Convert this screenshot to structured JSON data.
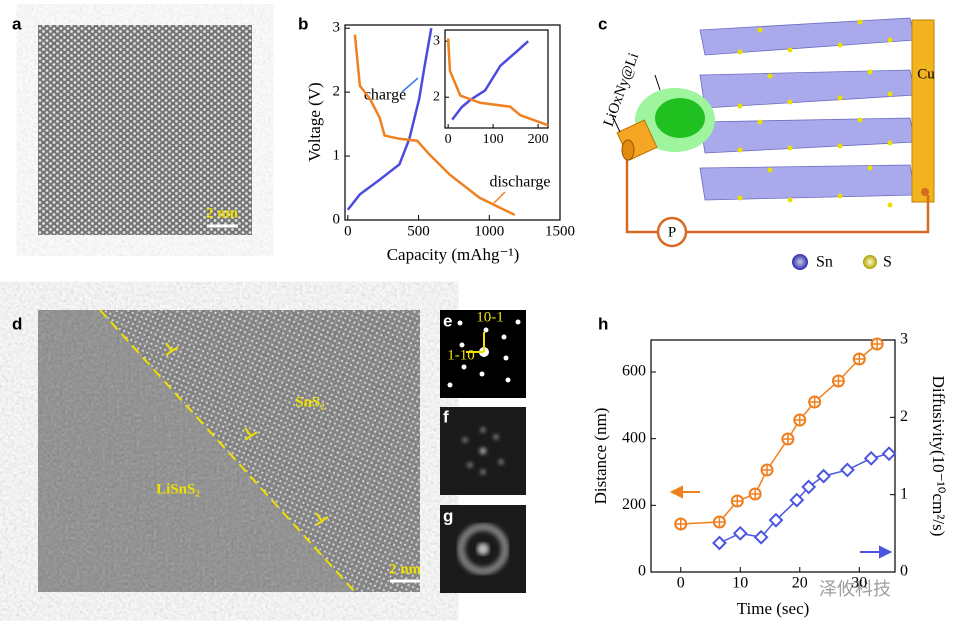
{
  "panel_a": {
    "label": "a",
    "scale_bar": "2 nm"
  },
  "panel_c": {
    "label": "c",
    "anode_coating": "LiOxNy@Li",
    "collector": "Cu",
    "power": "P",
    "legend": [
      "Sn",
      "S"
    ]
  },
  "panel_d": {
    "label": "d",
    "phase_top": "SnS₂",
    "phase_bottom": "LiSnS₂",
    "scale_bar": "2 nm"
  },
  "panel_e": {
    "label": "e",
    "spots": [
      "10-1",
      "1-10"
    ]
  },
  "panel_f": {
    "label": "f"
  },
  "panel_g": {
    "label": "g"
  },
  "watermark": "泽攸科技",
  "chart_data": [
    {
      "type": "line",
      "label": "b",
      "x_label": "Capacity (mAhg⁻¹)",
      "y_label": "Voltage (V)",
      "xlim": [
        -20,
        1500
      ],
      "xticks": [
        0,
        500,
        1000,
        1500
      ],
      "ylim": [
        0,
        3.05
      ],
      "yticks": [
        0,
        1,
        2,
        3
      ],
      "series": [
        {
          "name": "charge",
          "color": "#4b4be0",
          "x": [
            0,
            85,
            225,
            365,
            435,
            505,
            540,
            590
          ],
          "values": [
            0.16,
            0.4,
            0.63,
            0.87,
            1.27,
            1.9,
            2.37,
            3.0
          ]
        },
        {
          "name": "discharge",
          "color": "#f08020",
          "x": [
            50,
            85,
            155,
            225,
            260,
            365,
            490,
            575,
            720,
            930,
            1180
          ],
          "values": [
            2.9,
            2.1,
            1.9,
            1.6,
            1.32,
            1.27,
            1.24,
            1.03,
            0.71,
            0.35,
            0.08
          ]
        }
      ]
    },
    {
      "type": "line",
      "xlim": [
        -7,
        222
      ],
      "xticks": [
        0,
        100,
        200
      ],
      "ylim": [
        1.45,
        3.2
      ],
      "yticks": [
        2,
        3
      ],
      "series": [
        {
          "color": "#4b4be0",
          "x": [
            9,
            30,
            49,
            82,
            116,
            150,
            178
          ],
          "values": [
            1.6,
            1.82,
            1.95,
            2.12,
            2.56,
            2.8,
            3.0
          ]
        },
        {
          "color": "#f08020",
          "x": [
            0,
            4,
            27,
            71,
            138,
            160,
            222
          ],
          "values": [
            3.05,
            2.47,
            2.03,
            1.9,
            1.83,
            1.68,
            1.5
          ]
        }
      ]
    },
    {
      "type": "line",
      "label": "h",
      "x_label": "Time (sec)",
      "y_label": "Distance (nm)",
      "y2_label": "Diffusivity(10⁻¹⁰cm²/s)",
      "xlim": [
        -5,
        36
      ],
      "xticks": [
        0,
        10,
        20,
        30
      ],
      "ylim": [
        0,
        696
      ],
      "yticks": [
        0,
        200,
        400,
        600
      ],
      "y2lim": [
        0,
        3
      ],
      "y2ticks": [
        0,
        1,
        2,
        3
      ],
      "series": [
        {
          "color": "#f07f1e",
          "marker": "circle",
          "x": [
            0,
            6.5,
            9.5,
            12.5,
            14.5,
            18,
            20,
            22.5,
            26.5,
            30,
            33
          ],
          "values": [
            144,
            150,
            213,
            234,
            306,
            399,
            456,
            510,
            573,
            639,
            684
          ]
        },
        {
          "color": "#4a56e0",
          "marker": "diamond",
          "axis": "y2",
          "x": [
            6.5,
            10,
            13.5,
            16,
            19.5,
            21.5,
            24,
            28,
            32,
            35
          ],
          "values": [
            0.375,
            0.5,
            0.45,
            0.67,
            0.93,
            1.1,
            1.24,
            1.32,
            1.47,
            1.53
          ]
        }
      ]
    }
  ]
}
